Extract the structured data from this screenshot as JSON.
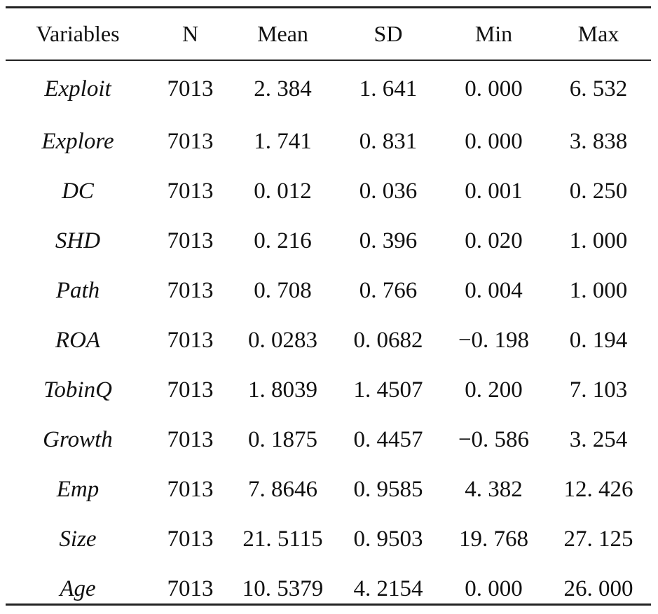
{
  "table": {
    "headers": [
      "Variables",
      "N",
      "Mean",
      "SD",
      "Min",
      "Max"
    ],
    "rows": [
      {
        "variable": "Exploit",
        "n": "7013",
        "mean": "2. 384",
        "sd": "1. 641",
        "min": "0. 000",
        "max": "6. 532"
      },
      {
        "variable": "Explore",
        "n": "7013",
        "mean": "1. 741",
        "sd": "0. 831",
        "min": "0. 000",
        "max": "3. 838"
      },
      {
        "variable": "DC",
        "n": "7013",
        "mean": "0. 012",
        "sd": "0. 036",
        "min": "0. 001",
        "max": "0. 250"
      },
      {
        "variable": "SHD",
        "n": "7013",
        "mean": "0. 216",
        "sd": "0. 396",
        "min": "0. 020",
        "max": "1. 000"
      },
      {
        "variable": "Path",
        "n": "7013",
        "mean": "0. 708",
        "sd": "0. 766",
        "min": "0. 004",
        "max": "1. 000"
      },
      {
        "variable": "ROA",
        "n": "7013",
        "mean": "0. 0283",
        "sd": "0. 0682",
        "min": "−0. 198",
        "max": "0. 194"
      },
      {
        "variable": "TobinQ",
        "n": "7013",
        "mean": "1. 8039",
        "sd": "1. 4507",
        "min": "0. 200",
        "max": "7. 103"
      },
      {
        "variable": "Growth",
        "n": "7013",
        "mean": "0. 1875",
        "sd": "0. 4457",
        "min": "−0. 586",
        "max": "3. 254"
      },
      {
        "variable": "Emp",
        "n": "7013",
        "mean": "7. 8646",
        "sd": "0. 9585",
        "min": "4. 382",
        "max": "12. 426"
      },
      {
        "variable": "Size",
        "n": "7013",
        "mean": "21. 5115",
        "sd": "0. 9503",
        "min": "19. 768",
        "max": "27. 125"
      },
      {
        "variable": "Age",
        "n": "7013",
        "mean": "10. 5379",
        "sd": "4. 2154",
        "min": "0. 000",
        "max": "26. 000"
      }
    ]
  }
}
